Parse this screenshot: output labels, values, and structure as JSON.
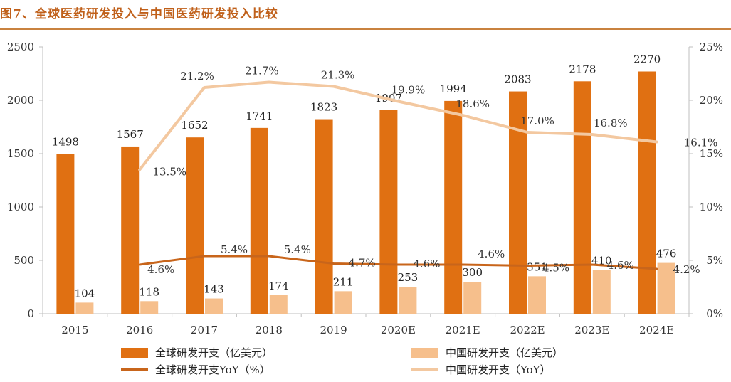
{
  "title": "图7、全球医药研发投入与中国医药研发投入比较",
  "colors": {
    "global_bar": "#e07012",
    "china_bar": "#f6bf8c",
    "global_line": "#c8651b",
    "china_line": "#f3c8a0",
    "title": "#c0601a",
    "rule": "#c9823f"
  },
  "chart_data": {
    "type": "bar",
    "categories": [
      "2015",
      "2016",
      "2017",
      "2018",
      "2019",
      "2020E",
      "2021E",
      "2022E",
      "2023E",
      "2024E"
    ],
    "series": [
      {
        "name": "全球研发开支（亿美元）",
        "kind": "bar",
        "axis": "left",
        "values": [
          1498,
          1567,
          1652,
          1741,
          1823,
          1907,
          1994,
          2083,
          2178,
          2270
        ],
        "labels": [
          "1498",
          "1567",
          "1652",
          "1741",
          "1823",
          "1907",
          "1994",
          "2083",
          "2178",
          "2270"
        ]
      },
      {
        "name": "中国研发开支（亿美元）",
        "kind": "bar",
        "axis": "left",
        "values": [
          104,
          118,
          143,
          174,
          211,
          253,
          300,
          351,
          410,
          476
        ],
        "labels": [
          "104",
          "118",
          "143",
          "174",
          "211",
          "253",
          "300",
          "351",
          "410",
          "476"
        ]
      },
      {
        "name": "全球研发开支YoY（%）",
        "kind": "line",
        "axis": "right",
        "values": [
          null,
          4.6,
          5.4,
          5.4,
          4.7,
          4.6,
          4.6,
          4.5,
          4.6,
          4.2
        ],
        "labels": [
          "",
          "4.6%",
          "5.4%",
          "5.4%",
          "4.7%",
          "4.6%",
          "4.6%",
          "4.5%",
          "4.6%",
          "4.2%"
        ]
      },
      {
        "name": "中国研发开支（YoY）",
        "kind": "line",
        "axis": "right",
        "values": [
          null,
          13.5,
          21.2,
          21.7,
          21.3,
          19.9,
          18.6,
          17.0,
          16.8,
          16.1
        ],
        "labels": [
          "",
          "13.5%",
          "21.2%",
          "21.7%",
          "21.3%",
          "19.9%",
          "18.6%",
          "17.0%",
          "16.8%",
          "16.1%"
        ]
      }
    ],
    "y_left": {
      "ylim": [
        0,
        2500
      ],
      "ticks": [
        "0",
        "500",
        "1000",
        "1500",
        "2000",
        "2500"
      ]
    },
    "y_right": {
      "ylim": [
        0,
        25
      ],
      "ticks": [
        "0%",
        "5%",
        "10%",
        "15%",
        "20%",
        "25%"
      ]
    },
    "grid": false,
    "legend_position": "bottom"
  }
}
